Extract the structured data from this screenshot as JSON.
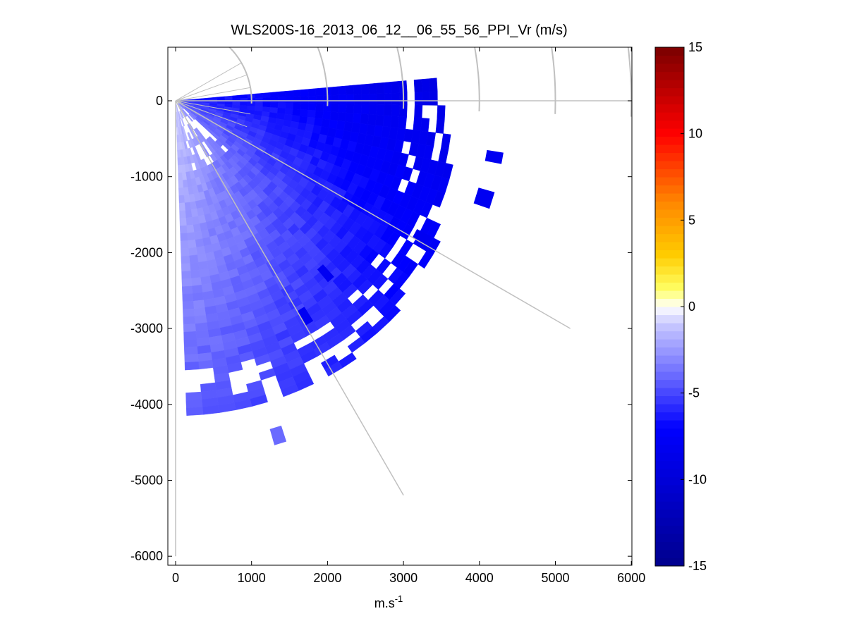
{
  "chart_data": {
    "type": "heatmap",
    "subtype": "ppi-polar-sector",
    "title": "WLS200S-16_2013_06_12__06_55_56_PPI_Vr (m/s)",
    "xlabel_base": "m.s",
    "xlabel_exponent": "-1",
    "ylabel": "",
    "xlim": [
      -50,
      6000
    ],
    "ylim": [
      -6100,
      700
    ],
    "x_ticks": [
      0,
      1000,
      2000,
      3000,
      4000,
      5000,
      6000
    ],
    "x_tick_labels": [
      "0",
      "1000",
      "2000",
      "3000",
      "4000",
      "5000",
      "6000"
    ],
    "y_ticks": [
      0,
      -1000,
      -2000,
      -3000,
      -4000,
      -5000,
      -6000
    ],
    "y_tick_labels": [
      "0",
      "-1000",
      "-2000",
      "-3000",
      "-4000",
      "-5000",
      "-6000"
    ],
    "polar_grid": {
      "range_rings": [
        1000,
        2000,
        3000,
        4000,
        5000,
        6000
      ],
      "spoke_bearings_deg": [
        0,
        30,
        60,
        90
      ],
      "minor_spoke_bearings_deg": [
        -30,
        -20,
        -10,
        10,
        20,
        30
      ],
      "color": "#c0c0c0"
    },
    "scan": {
      "bearing_min_deg": -5,
      "bearing_max_deg": 88,
      "range_min_m": 50,
      "range_max_m": 4300,
      "velocity_at_bearing_90_near": -0.5,
      "velocity_at_bearing_5_far": -9.5,
      "notes": "radial velocity becomes more negative with range and with bearing toward east"
    },
    "colorbar": {
      "min": -15,
      "max": 15,
      "ticks": [
        15,
        10,
        5,
        0,
        -5,
        -10,
        -15
      ],
      "tick_labels": [
        "15",
        "10",
        "5",
        "0",
        "-5",
        "-10",
        "-15"
      ],
      "colormap": "blue-white-red",
      "stops": [
        {
          "value": -15,
          "color": "#00008c"
        },
        {
          "value": -10,
          "color": "#0000d8"
        },
        {
          "value": -7,
          "color": "#0000ff"
        },
        {
          "value": -4,
          "color": "#6a6aff"
        },
        {
          "value": -1,
          "color": "#c8c8ff"
        },
        {
          "value": 0,
          "color": "#ffffff"
        },
        {
          "value": 1,
          "color": "#ffff66"
        },
        {
          "value": 3,
          "color": "#ffcc00"
        },
        {
          "value": 6,
          "color": "#ff8800"
        },
        {
          "value": 10,
          "color": "#ff0000"
        },
        {
          "value": 15,
          "color": "#7a0000"
        }
      ]
    }
  }
}
